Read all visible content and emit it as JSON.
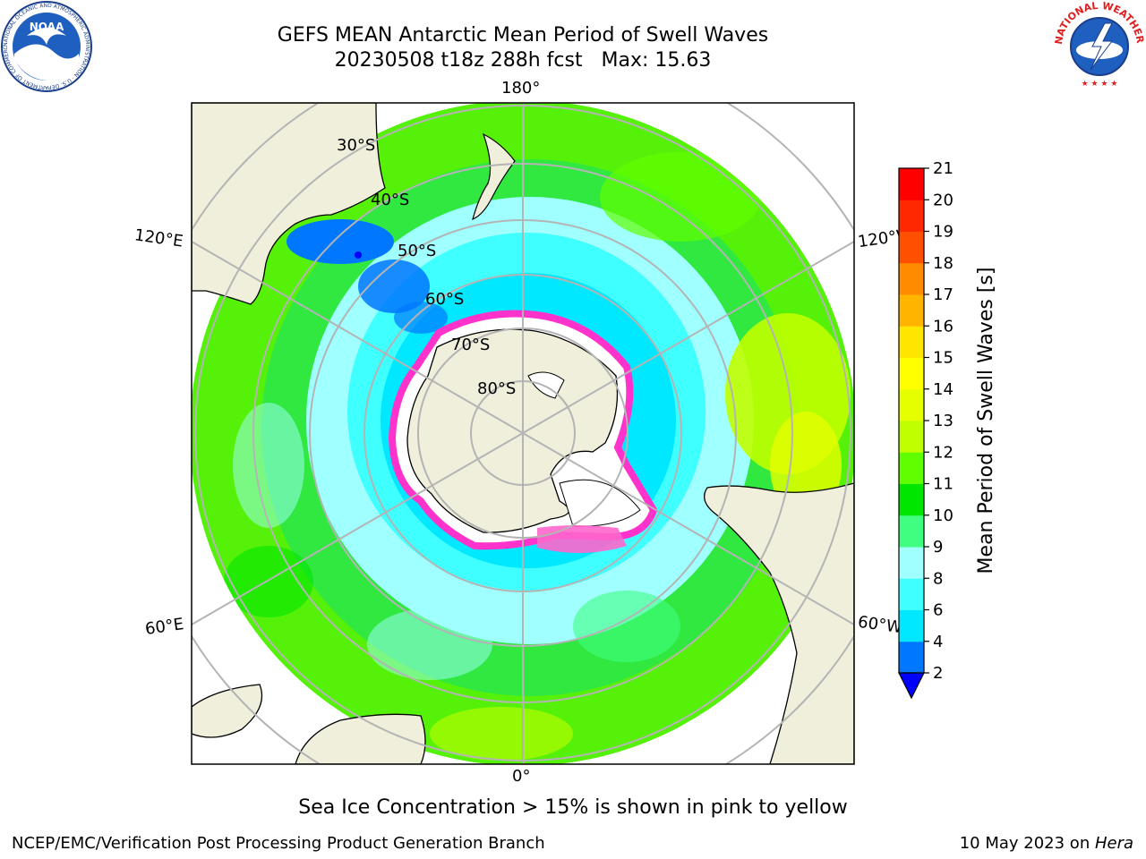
{
  "title": {
    "line1": "GEFS MEAN Antarctic Mean Period of Swell Waves",
    "line2": "20230508 t18z 288h fcst   Max: 15.63"
  },
  "map": {
    "projection": "south-polar-stereographic",
    "meridian_labels": {
      "top": "180°",
      "bottom": "0°",
      "upper_left": "120°E",
      "lower_left": "60°E",
      "upper_right": "120°W",
      "lower_right": "60°W"
    },
    "latitude_labels": [
      "30°S",
      "40°S",
      "50°S",
      "60°S",
      "70°S",
      "80°S"
    ],
    "colors": {
      "land": "#efefdc",
      "grid": "#b4b4b4",
      "sea_ice_edge": "#ff33cc"
    }
  },
  "colorbar": {
    "label": "Mean Period of Swell Waves [s]",
    "ticks": [
      "2",
      "4",
      "6",
      "8",
      "9",
      "10",
      "11",
      "12",
      "13",
      "14",
      "15",
      "16",
      "17",
      "18",
      "19",
      "20",
      "21"
    ],
    "colors": [
      "#0077ff",
      "#00e8ff",
      "#40ffff",
      "#a0ffff",
      "#40ff80",
      "#00e600",
      "#60ff00",
      "#c0ff00",
      "#e6ff00",
      "#ffff00",
      "#ffe600",
      "#ffb400",
      "#ff8c00",
      "#ff5000",
      "#ff2800",
      "#ff0000"
    ],
    "extend_color": "#0000ff"
  },
  "caption": "Sea Ice Concentration > 15% is shown in pink to yellow",
  "footer": {
    "left": "NCEP/EMC/Verification Post Processing Product Generation Branch",
    "right_prefix": "10 May 2023 on ",
    "right_machine": "Hera"
  },
  "logos": {
    "noaa_text": "NOAA",
    "nws_text": "NATIONAL WEATHER SERVICE"
  }
}
